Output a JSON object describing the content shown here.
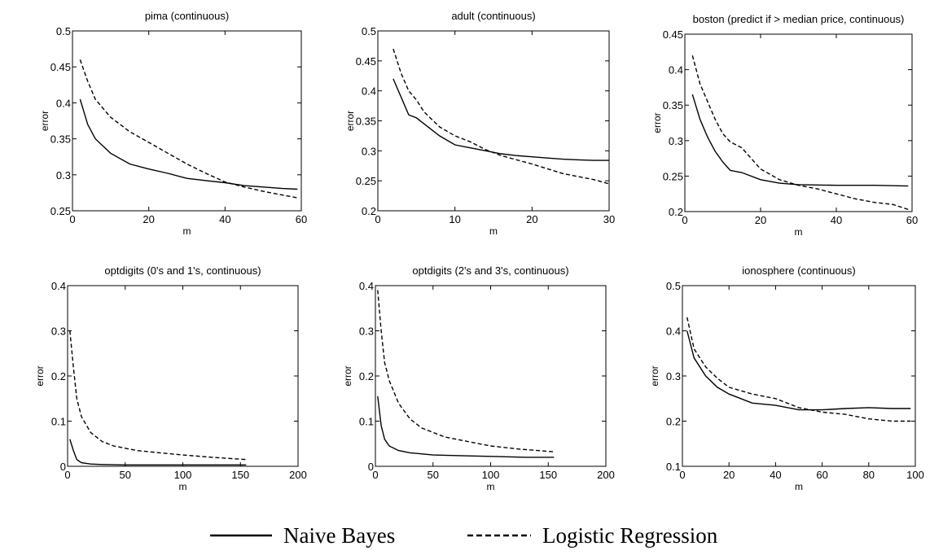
{
  "legend": {
    "naive_bayes": "Naive Bayes",
    "logistic_regression": "Logistic Regression"
  },
  "chart_data": [
    {
      "type": "line",
      "title": "pima (continuous)",
      "xlabel": "m",
      "ylabel": "error",
      "xlim": [
        0,
        60
      ],
      "ylim": [
        0.25,
        0.5
      ],
      "xticks": [
        0,
        20,
        40,
        60
      ],
      "yticks": [
        0.25,
        0.3,
        0.35,
        0.4,
        0.45,
        0.5
      ],
      "xtick_labels": [
        "0",
        "20",
        "40",
        "60"
      ],
      "ytick_labels": [
        "0.25",
        "0.3",
        "0.35",
        "0.4",
        "0.45",
        "0.5"
      ],
      "series": [
        {
          "name": "Naive Bayes",
          "x": [
            2,
            4,
            6,
            10,
            15,
            20,
            25,
            30,
            35,
            40,
            45,
            50,
            55,
            59
          ],
          "y": [
            0.405,
            0.37,
            0.35,
            0.33,
            0.315,
            0.308,
            0.302,
            0.295,
            0.292,
            0.289,
            0.285,
            0.283,
            0.281,
            0.28
          ]
        },
        {
          "name": "Logistic Regression",
          "x": [
            2,
            4,
            6,
            10,
            15,
            20,
            25,
            30,
            35,
            40,
            45,
            50,
            55,
            59
          ],
          "y": [
            0.46,
            0.43,
            0.405,
            0.38,
            0.36,
            0.345,
            0.33,
            0.315,
            0.302,
            0.29,
            0.283,
            0.277,
            0.272,
            0.268
          ]
        }
      ]
    },
    {
      "type": "line",
      "title": "adult (continuous)",
      "xlabel": "m",
      "ylabel": "error",
      "xlim": [
        0,
        30
      ],
      "ylim": [
        0.2,
        0.5
      ],
      "xticks": [
        0,
        10,
        20,
        30
      ],
      "yticks": [
        0.2,
        0.25,
        0.3,
        0.35,
        0.4,
        0.45,
        0.5
      ],
      "xtick_labels": [
        "0",
        "10",
        "20",
        "30"
      ],
      "ytick_labels": [
        "0.2",
        "0.25",
        "0.3",
        "0.35",
        "0.4",
        "0.45",
        "0.5"
      ],
      "series": [
        {
          "name": "Naive Bayes",
          "x": [
            2,
            3,
            4,
            5,
            6,
            8,
            10,
            12,
            14,
            16,
            18,
            20,
            22,
            24,
            26,
            28,
            30
          ],
          "y": [
            0.42,
            0.39,
            0.36,
            0.355,
            0.345,
            0.325,
            0.31,
            0.305,
            0.3,
            0.295,
            0.292,
            0.29,
            0.288,
            0.286,
            0.285,
            0.284,
            0.284
          ]
        },
        {
          "name": "Logistic Regression",
          "x": [
            2,
            3,
            4,
            5,
            6,
            8,
            10,
            12,
            14,
            16,
            18,
            20,
            22,
            24,
            26,
            28,
            30
          ],
          "y": [
            0.47,
            0.43,
            0.4,
            0.385,
            0.365,
            0.34,
            0.325,
            0.315,
            0.302,
            0.292,
            0.285,
            0.278,
            0.27,
            0.262,
            0.257,
            0.252,
            0.245
          ]
        }
      ]
    },
    {
      "type": "line",
      "title": "boston (predict if > median price, continuous)",
      "xlabel": "m",
      "ylabel": "error",
      "xlim": [
        0,
        60
      ],
      "ylim": [
        0.2,
        0.45
      ],
      "xticks": [
        0,
        20,
        40,
        60
      ],
      "yticks": [
        0.2,
        0.25,
        0.3,
        0.35,
        0.4,
        0.45
      ],
      "xtick_labels": [
        "0",
        "20",
        "40",
        "60"
      ],
      "ytick_labels": [
        "0.2",
        "0.25",
        "0.3",
        "0.35",
        "0.4",
        "0.45"
      ],
      "series": [
        {
          "name": "Naive Bayes",
          "x": [
            2,
            4,
            6,
            8,
            10,
            12,
            15,
            20,
            25,
            30,
            40,
            50,
            59
          ],
          "y": [
            0.365,
            0.33,
            0.305,
            0.285,
            0.27,
            0.258,
            0.255,
            0.245,
            0.24,
            0.238,
            0.237,
            0.237,
            0.236
          ]
        },
        {
          "name": "Logistic Regression",
          "x": [
            2,
            4,
            6,
            8,
            10,
            12,
            15,
            20,
            25,
            30,
            35,
            40,
            45,
            50,
            55,
            59
          ],
          "y": [
            0.42,
            0.38,
            0.355,
            0.33,
            0.31,
            0.298,
            0.29,
            0.26,
            0.245,
            0.237,
            0.232,
            0.225,
            0.218,
            0.213,
            0.21,
            0.203
          ]
        }
      ]
    },
    {
      "type": "line",
      "title": "optdigits (0's and 1's, continuous)",
      "xlabel": "m",
      "ylabel": "error",
      "xlim": [
        0,
        200
      ],
      "ylim": [
        0,
        0.4
      ],
      "xticks": [
        0,
        50,
        100,
        150,
        200
      ],
      "yticks": [
        0,
        0.1,
        0.2,
        0.3,
        0.4
      ],
      "xtick_labels": [
        "0",
        "50",
        "100",
        "150",
        "200"
      ],
      "ytick_labels": [
        "0",
        "0.1",
        "0.2",
        "0.3",
        "0.4"
      ],
      "series": [
        {
          "name": "Naive Bayes",
          "x": [
            2,
            5,
            8,
            12,
            20,
            30,
            50,
            100,
            155
          ],
          "y": [
            0.06,
            0.035,
            0.015,
            0.008,
            0.005,
            0.004,
            0.003,
            0.003,
            0.003
          ]
        },
        {
          "name": "Logistic Regression",
          "x": [
            2,
            5,
            8,
            12,
            20,
            30,
            40,
            60,
            80,
            100,
            125,
            155
          ],
          "y": [
            0.3,
            0.22,
            0.15,
            0.11,
            0.075,
            0.055,
            0.045,
            0.035,
            0.03,
            0.025,
            0.02,
            0.015
          ]
        }
      ]
    },
    {
      "type": "line",
      "title": "optdigits (2's and 3's, continuous)",
      "xlabel": "m",
      "ylabel": "error",
      "xlim": [
        0,
        200
      ],
      "ylim": [
        0,
        0.4
      ],
      "xticks": [
        0,
        50,
        100,
        150,
        200
      ],
      "yticks": [
        0,
        0.1,
        0.2,
        0.3,
        0.4
      ],
      "xtick_labels": [
        "0",
        "50",
        "100",
        "150",
        "200"
      ],
      "ytick_labels": [
        "0",
        "0.1",
        "0.2",
        "0.3",
        "0.4"
      ],
      "series": [
        {
          "name": "Naive Bayes",
          "x": [
            2,
            5,
            8,
            12,
            20,
            30,
            50,
            80,
            100,
            130,
            155
          ],
          "y": [
            0.155,
            0.09,
            0.06,
            0.045,
            0.035,
            0.03,
            0.025,
            0.023,
            0.022,
            0.02,
            0.02
          ]
        },
        {
          "name": "Logistic Regression",
          "x": [
            2,
            5,
            8,
            12,
            20,
            30,
            40,
            60,
            80,
            100,
            125,
            155
          ],
          "y": [
            0.39,
            0.3,
            0.23,
            0.19,
            0.14,
            0.105,
            0.085,
            0.065,
            0.055,
            0.045,
            0.038,
            0.032
          ]
        }
      ]
    },
    {
      "type": "line",
      "title": "ionosphere (continuous)",
      "xlabel": "m",
      "ylabel": "error",
      "xlim": [
        0,
        100
      ],
      "ylim": [
        0.1,
        0.5
      ],
      "xticks": [
        0,
        20,
        40,
        60,
        80,
        100
      ],
      "yticks": [
        0.1,
        0.2,
        0.3,
        0.4,
        0.5
      ],
      "xtick_labels": [
        "0",
        "20",
        "40",
        "60",
        "80",
        "100"
      ],
      "ytick_labels": [
        "0.1",
        "0.2",
        "0.3",
        "0.4",
        "0.5"
      ],
      "series": [
        {
          "name": "Naive Bayes",
          "x": [
            2,
            5,
            10,
            15,
            20,
            30,
            40,
            50,
            60,
            70,
            80,
            90,
            98
          ],
          "y": [
            0.4,
            0.34,
            0.3,
            0.275,
            0.26,
            0.24,
            0.235,
            0.225,
            0.225,
            0.228,
            0.23,
            0.228,
            0.228
          ]
        },
        {
          "name": "Logistic Regression",
          "x": [
            2,
            5,
            10,
            15,
            20,
            30,
            40,
            50,
            60,
            70,
            80,
            90,
            98
          ],
          "y": [
            0.43,
            0.36,
            0.32,
            0.295,
            0.275,
            0.26,
            0.25,
            0.23,
            0.22,
            0.215,
            0.205,
            0.2,
            0.2
          ]
        }
      ]
    }
  ]
}
